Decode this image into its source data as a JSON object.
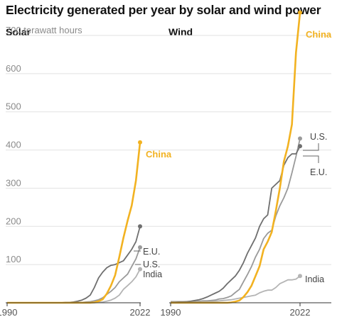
{
  "title": "Electricity generated per year by solar and wind power",
  "colors": {
    "china": "#f2b221",
    "eu": "#6f6f6f",
    "us": "#9a9a9a",
    "india": "#b4b4b4",
    "grid": "#e2e2e2",
    "axis": "#333333"
  },
  "chart_data": [
    {
      "type": "line",
      "title": "Solar",
      "ylabel": "700 terawatt hours",
      "ylim": [
        0,
        700
      ],
      "yticks": [
        "700 terawatt hours",
        "600",
        "500",
        "400",
        "300",
        "200",
        "100"
      ],
      "xlim": [
        1990,
        2022
      ],
      "xticks": [
        "1990",
        "2022"
      ],
      "x": [
        1990,
        1991,
        1992,
        1993,
        1994,
        1995,
        1996,
        1997,
        1998,
        1999,
        2000,
        2001,
        2002,
        2003,
        2004,
        2005,
        2006,
        2007,
        2008,
        2009,
        2010,
        2011,
        2012,
        2013,
        2014,
        2015,
        2016,
        2017,
        2018,
        2019,
        2020,
        2021,
        2022
      ],
      "series": [
        {
          "name": "China",
          "values": [
            0,
            0,
            0,
            0,
            0,
            0,
            0,
            0,
            0,
            0,
            0,
            0,
            0,
            0,
            0,
            0,
            0,
            0,
            0,
            0,
            0,
            1,
            4,
            9,
            24,
            45,
            72,
            120,
            170,
            215,
            255,
            320,
            420
          ]
        },
        {
          "name": "E.U.",
          "values": [
            0,
            0,
            0,
            0,
            0,
            0,
            0,
            0,
            0,
            0,
            0,
            0,
            0,
            0,
            1,
            1,
            2,
            4,
            7,
            12,
            20,
            40,
            65,
            80,
            92,
            98,
            100,
            105,
            110,
            125,
            140,
            160,
            200
          ]
        },
        {
          "name": "U.S.",
          "values": [
            0,
            0,
            0,
            0,
            0,
            0,
            0,
            0,
            0,
            0,
            0,
            0,
            0,
            0,
            0,
            0,
            0,
            1,
            1,
            2,
            3,
            5,
            8,
            13,
            22,
            30,
            40,
            55,
            65,
            75,
            95,
            115,
            145
          ]
        },
        {
          "name": "India",
          "values": [
            0,
            0,
            0,
            0,
            0,
            0,
            0,
            0,
            0,
            0,
            0,
            0,
            0,
            0,
            0,
            0,
            0,
            0,
            0,
            0,
            0,
            0,
            1,
            2,
            4,
            7,
            12,
            20,
            35,
            45,
            55,
            68,
            88
          ]
        }
      ],
      "labels": [
        "China",
        "E.U.",
        "U.S.",
        "India"
      ]
    },
    {
      "type": "line",
      "title": "Wind",
      "ylim": [
        0,
        700
      ],
      "xlim": [
        1990,
        2022
      ],
      "xticks": [
        "1990",
        "2022"
      ],
      "x": [
        1990,
        1991,
        1992,
        1993,
        1994,
        1995,
        1996,
        1997,
        1998,
        1999,
        2000,
        2001,
        2002,
        2003,
        2004,
        2005,
        2006,
        2007,
        2008,
        2009,
        2010,
        2011,
        2012,
        2013,
        2014,
        2015,
        2016,
        2017,
        2018,
        2019,
        2020,
        2021,
        2022
      ],
      "series": [
        {
          "name": "China",
          "values": [
            0,
            0,
            0,
            0,
            0,
            0,
            0,
            0,
            0,
            0,
            0,
            0,
            0,
            0,
            0,
            1,
            3,
            6,
            15,
            28,
            45,
            70,
            96,
            140,
            160,
            185,
            240,
            300,
            370,
            410,
            467,
            655,
            760
          ]
        },
        {
          "name": "U.S.",
          "values": [
            3,
            3,
            3,
            3,
            3,
            3,
            3,
            4,
            5,
            5,
            6,
            7,
            10,
            11,
            14,
            18,
            27,
            35,
            55,
            74,
            95,
            120,
            140,
            168,
            182,
            190,
            227,
            254,
            275,
            300,
            340,
            383,
            430
          ]
        },
        {
          "name": "E.U.",
          "values": [
            1,
            1,
            2,
            2,
            3,
            4,
            6,
            8,
            11,
            15,
            20,
            25,
            30,
            38,
            50,
            60,
            70,
            85,
            105,
            130,
            150,
            170,
            200,
            220,
            230,
            300,
            310,
            320,
            360,
            380,
            390,
            390,
            410
          ]
        },
        {
          "name": "India",
          "values": [
            0,
            0,
            0,
            0,
            0,
            0,
            0,
            1,
            2,
            2,
            3,
            4,
            5,
            6,
            7,
            8,
            10,
            12,
            14,
            16,
            18,
            20,
            26,
            30,
            33,
            33,
            40,
            50,
            55,
            60,
            60,
            62,
            70
          ]
        }
      ],
      "labels": [
        "China",
        "U.S.",
        "E.U.",
        "India"
      ]
    }
  ]
}
